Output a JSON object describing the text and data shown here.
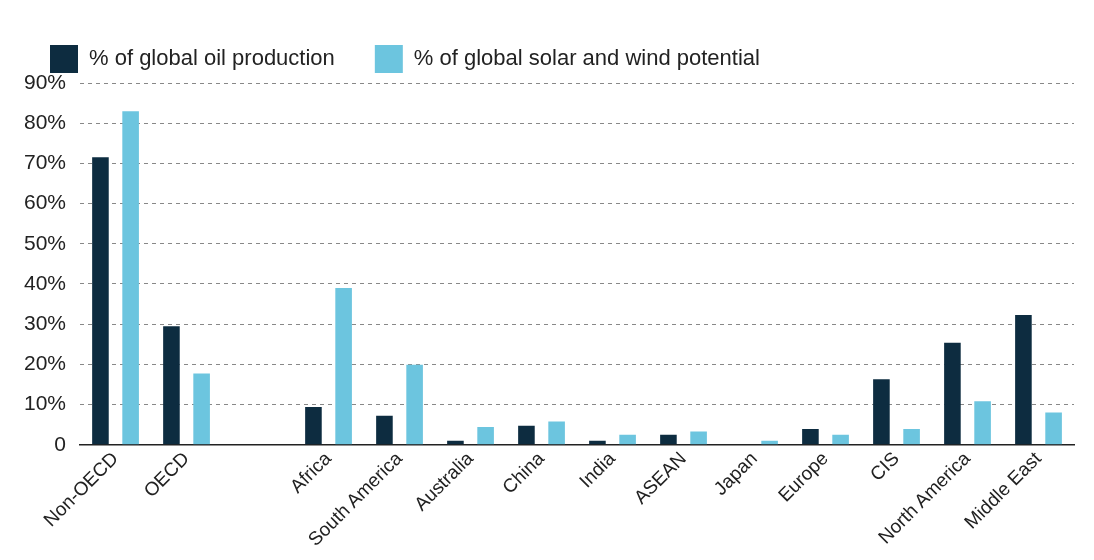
{
  "chart_data": {
    "type": "bar",
    "categories": [
      "Non-OECD",
      "OECD",
      null,
      "Africa",
      "South America",
      "Australia",
      "China",
      "India",
      "ASEAN",
      "Japan",
      "Europe",
      "CIS",
      "North America",
      "Middle East"
    ],
    "series": [
      {
        "name": "% of global oil production",
        "color": "#0d2c40",
        "values": [
          71.5,
          29.5,
          null,
          9.4,
          7.2,
          1,
          4.7,
          1,
          2.5,
          0,
          3.9,
          16.3,
          25.4,
          32.3
        ]
      },
      {
        "name": "% of global solar and wind potential",
        "color": "#6cc5df",
        "values": [
          83,
          17.7,
          null,
          39,
          19.9,
          4.4,
          5.8,
          2.5,
          3.3,
          1,
          2.5,
          3.9,
          10.8,
          8
        ]
      }
    ],
    "ylim": [
      0,
      90
    ],
    "yticks": [
      0,
      {
        "value": 10,
        "label": "10%"
      },
      {
        "value": 20,
        "label": "20%"
      },
      {
        "value": 30,
        "label": "30%"
      },
      {
        "value": 40,
        "label": "40%"
      },
      {
        "value": 50,
        "label": "50%"
      },
      {
        "value": 60,
        "label": "60%"
      },
      {
        "value": 70,
        "label": "70%"
      },
      {
        "value": 80,
        "label": "80%"
      },
      {
        "value": 90,
        "label": "90%"
      }
    ],
    "grid": "y",
    "legend": "top"
  }
}
